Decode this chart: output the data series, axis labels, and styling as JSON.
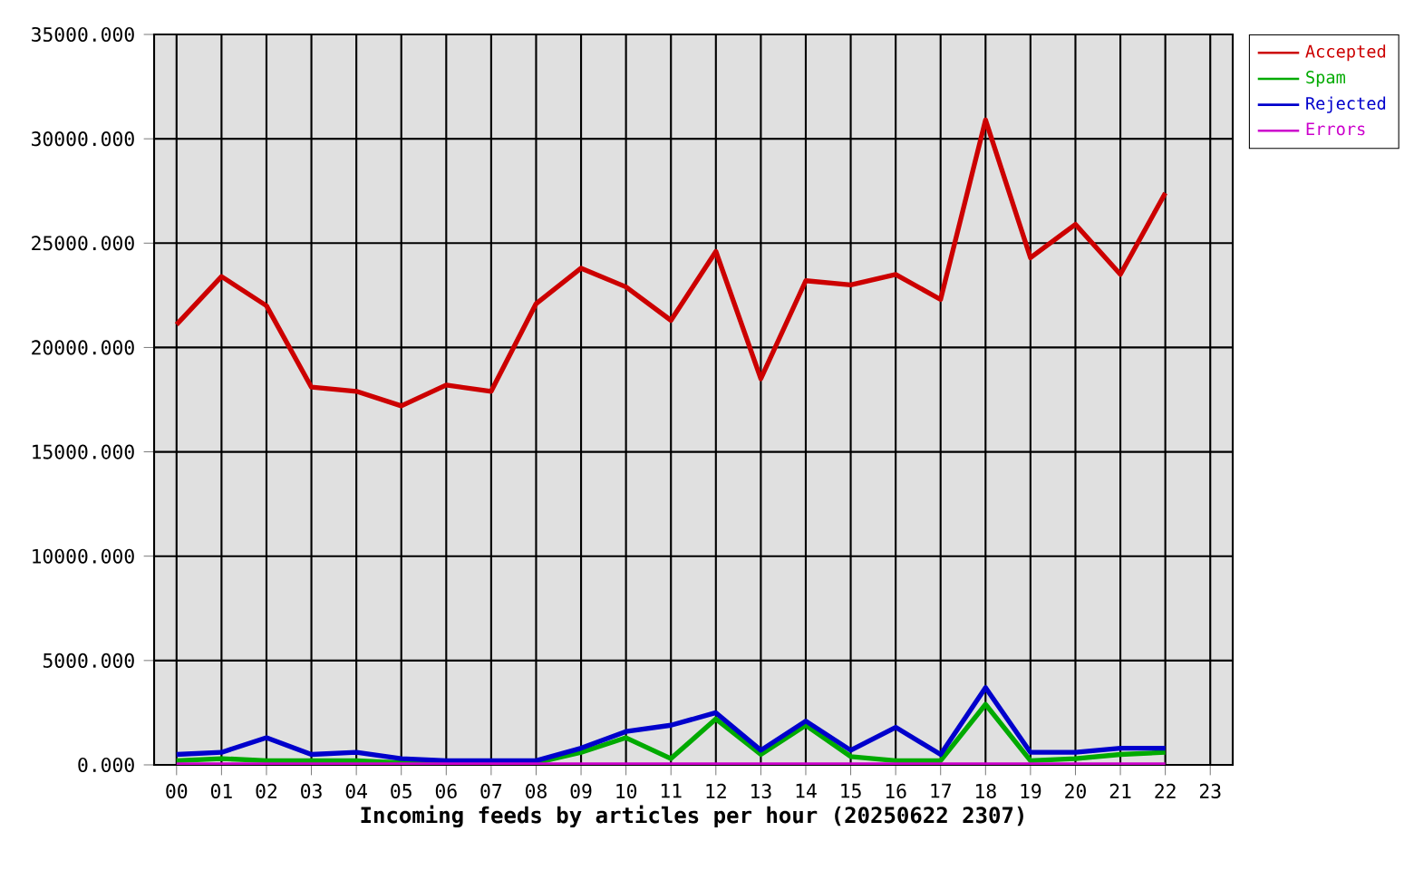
{
  "chart_data": {
    "type": "line",
    "xlabel": "Incoming feeds by articles per hour (20250622 2307)",
    "categories": [
      "00",
      "01",
      "02",
      "03",
      "04",
      "05",
      "06",
      "07",
      "08",
      "09",
      "10",
      "11",
      "12",
      "13",
      "14",
      "15",
      "16",
      "17",
      "18",
      "19",
      "20",
      "21",
      "22",
      "23"
    ],
    "series": [
      {
        "name": "Accepted",
        "color": "#cc0000",
        "values": [
          21100,
          23400,
          22000,
          18100,
          17900,
          17200,
          18200,
          17900,
          22100,
          23800,
          22900,
          21300,
          24600,
          18500,
          23200,
          23000,
          23500,
          22300,
          30900,
          24300,
          25900,
          23500,
          27400,
          null
        ]
      },
      {
        "name": "Spam",
        "color": "#00aa00",
        "values": [
          200,
          300,
          200,
          200,
          200,
          100,
          100,
          100,
          100,
          600,
          1300,
          300,
          2200,
          500,
          1900,
          400,
          200,
          200,
          2900,
          200,
          300,
          500,
          600,
          null
        ]
      },
      {
        "name": "Rejected",
        "color": "#0000cc",
        "values": [
          500,
          600,
          1300,
          500,
          600,
          300,
          200,
          200,
          200,
          800,
          1600,
          1900,
          2500,
          700,
          2100,
          700,
          1800,
          500,
          3700,
          600,
          600,
          800,
          800,
          null
        ]
      },
      {
        "name": "Errors",
        "color": "#cc00cc",
        "values": [
          0,
          0,
          0,
          0,
          0,
          0,
          0,
          0,
          0,
          0,
          0,
          0,
          0,
          0,
          0,
          0,
          0,
          0,
          0,
          0,
          0,
          0,
          0,
          null
        ]
      }
    ],
    "ylim": [
      0,
      35000
    ],
    "yticks": [
      {
        "value": 0,
        "label": "0.000"
      },
      {
        "value": 5000,
        "label": "5000.000"
      },
      {
        "value": 10000,
        "label": "10000.000"
      },
      {
        "value": 15000,
        "label": "15000.000"
      },
      {
        "value": 20000,
        "label": "20000.000"
      },
      {
        "value": 25000,
        "label": "25000.000"
      },
      {
        "value": 30000,
        "label": "30000.000"
      },
      {
        "value": 35000,
        "label": "35000.000"
      }
    ],
    "grid": true,
    "legend": "top right",
    "line_style": "solid"
  }
}
